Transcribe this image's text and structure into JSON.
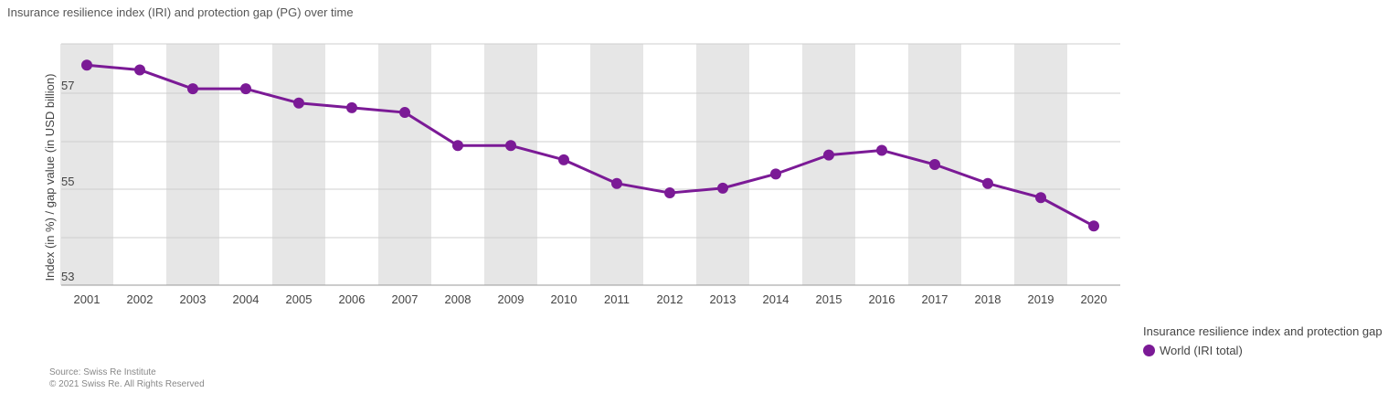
{
  "title": "Insurance resilience index (IRI) and protection gap (PG) over time",
  "source_line": "Source: Swiss Re Institute",
  "copyright_line": "© 2021 Swiss Re. All Rights Reserved",
  "legend": {
    "title": "Insurance resilience index and protection gap",
    "item_label": "World (IRI total)"
  },
  "colors": {
    "series": "#7b1a96",
    "band": "#e6e6e6",
    "grid": "#cfcfcf"
  },
  "chart_data": {
    "type": "line",
    "title": "Insurance resilience index (IRI) and protection gap (PG) over time",
    "ylabel": "Index (in %) / gap value (in USD billion)",
    "xlabel": "",
    "x": [
      "2001",
      "2002",
      "2003",
      "2004",
      "2005",
      "2006",
      "2007",
      "2008",
      "2009",
      "2010",
      "2011",
      "2012",
      "2013",
      "2014",
      "2015",
      "2016",
      "2017",
      "2018",
      "2019",
      "2020"
    ],
    "ytick_labels": [
      {
        "value": 53,
        "label": "53"
      },
      {
        "value": 55,
        "label": "55"
      },
      {
        "value": 57,
        "label": "57"
      }
    ],
    "ylim": [
      52.85,
      57.95
    ],
    "grid": true,
    "legend_position": "bottom-right",
    "series": [
      {
        "name": "World (IRI total)",
        "values": [
          57.5,
          57.4,
          57.0,
          57.0,
          56.7,
          56.6,
          56.5,
          55.8,
          55.8,
          55.5,
          55.0,
          54.8,
          54.9,
          55.2,
          55.6,
          55.7,
          55.4,
          55.0,
          54.7,
          54.1
        ]
      }
    ]
  }
}
